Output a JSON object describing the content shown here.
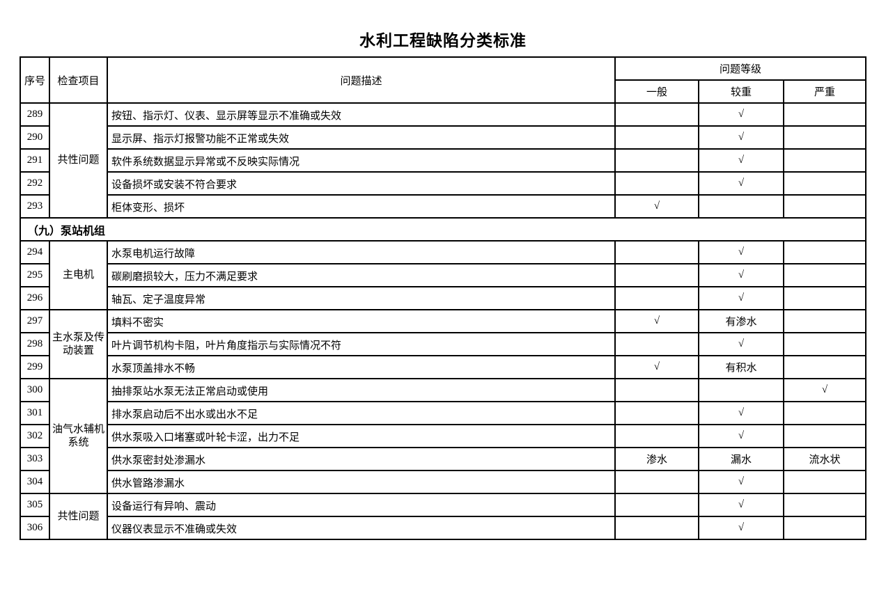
{
  "page": {
    "title": "水利工程缺陷分类标准"
  },
  "table": {
    "header": {
      "serial": "序号",
      "item": "检查项目",
      "description": "问题描述",
      "level_group": "问题等级",
      "levels": [
        "一般",
        "较重",
        "严重"
      ]
    },
    "checkmark": "√",
    "border_color": "#000000",
    "blocks": [
      {
        "type": "group",
        "item": "共性问题",
        "rows": [
          {
            "no": "289",
            "desc": "按钮、指示灯、仪表、显示屏等显示不准确或失效",
            "levels": [
              "",
              "√",
              ""
            ]
          },
          {
            "no": "290",
            "desc": "显示屏、指示灯报警功能不正常或失效",
            "levels": [
              "",
              "√",
              ""
            ]
          },
          {
            "no": "291",
            "desc": "软件系统数据显示异常或不反映实际情况",
            "levels": [
              "",
              "√",
              ""
            ]
          },
          {
            "no": "292",
            "desc": "设备损坏或安装不符合要求",
            "levels": [
              "",
              "√",
              ""
            ]
          },
          {
            "no": "293",
            "desc": "柜体变形、损坏",
            "levels": [
              "√",
              "",
              ""
            ]
          }
        ]
      },
      {
        "type": "section",
        "label": "（九）泵站机组"
      },
      {
        "type": "group",
        "item": "主电机",
        "rows": [
          {
            "no": "294",
            "desc": "水泵电机运行故障",
            "levels": [
              "",
              "√",
              ""
            ]
          },
          {
            "no": "295",
            "desc": "碳刷磨损较大，压力不满足要求",
            "levels": [
              "",
              "√",
              ""
            ]
          },
          {
            "no": "296",
            "desc": "轴瓦、定子温度异常",
            "levels": [
              "",
              "√",
              ""
            ]
          }
        ]
      },
      {
        "type": "group",
        "item": "主水泵及传动装置",
        "rows": [
          {
            "no": "297",
            "desc": "填料不密实",
            "levels": [
              "√",
              "有渗水",
              ""
            ]
          },
          {
            "no": "298",
            "desc": "叶片调节机构卡阻，叶片角度指示与实际情况不符",
            "levels": [
              "",
              "√",
              ""
            ]
          },
          {
            "no": "299",
            "desc": "水泵顶盖排水不畅",
            "levels": [
              "√",
              "有积水",
              ""
            ]
          }
        ]
      },
      {
        "type": "group",
        "item": "油气水辅机系统",
        "rows": [
          {
            "no": "300",
            "desc": "抽排泵站水泵无法正常启动或使用",
            "levels": [
              "",
              "",
              "√"
            ]
          },
          {
            "no": "301",
            "desc": "排水泵启动后不出水或出水不足",
            "levels": [
              "",
              "√",
              ""
            ]
          },
          {
            "no": "302",
            "desc": "供水泵吸入口堵塞或叶轮卡涩，出力不足",
            "levels": [
              "",
              "√",
              ""
            ]
          },
          {
            "no": "303",
            "desc": "供水泵密封处渗漏水",
            "levels": [
              "渗水",
              "漏水",
              "流水状"
            ]
          },
          {
            "no": "304",
            "desc": "供水管路渗漏水",
            "levels": [
              "",
              "√",
              ""
            ]
          }
        ]
      },
      {
        "type": "group",
        "item": "共性问题",
        "rows": [
          {
            "no": "305",
            "desc": "设备运行有异响、震动",
            "levels": [
              "",
              "√",
              ""
            ]
          },
          {
            "no": "306",
            "desc": "仪器仪表显示不准确或失效",
            "levels": [
              "",
              "√",
              ""
            ]
          }
        ]
      }
    ]
  }
}
